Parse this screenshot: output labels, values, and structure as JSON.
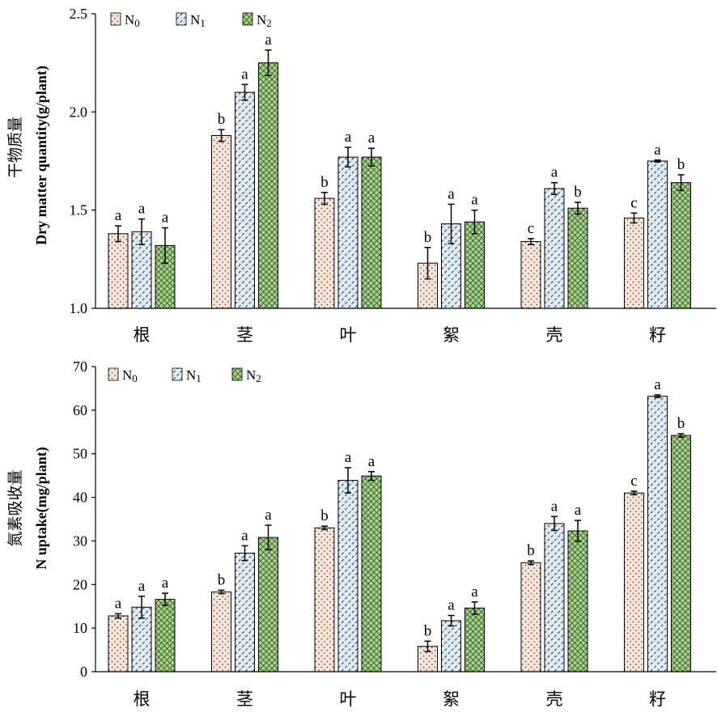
{
  "colors": {
    "N0_fill": "#fbe4d5",
    "N1_fill": "#ddebf7",
    "N2_fill": "#a9d08e",
    "axis": "#000000"
  },
  "chart_data": [
    {
      "type": "bar",
      "ylabel_cn": "干物质量",
      "ylabel_en": "Dry matter quantity(g/plant)",
      "ylim": [
        1.0,
        2.5
      ],
      "yticks": [
        "1.0",
        "1.5",
        "2.0",
        "2.5"
      ],
      "categories": [
        "根",
        "茎",
        "叶",
        "絮",
        "壳",
        "籽"
      ],
      "legend_position": "top-left",
      "series": [
        {
          "name": "N0",
          "values": [
            1.38,
            1.88,
            1.56,
            1.23,
            1.34,
            1.46
          ],
          "errors": [
            0.04,
            0.03,
            0.03,
            0.08,
            0.015,
            0.025
          ],
          "labels": [
            "a",
            "b",
            "b",
            "b",
            "c",
            "c"
          ]
        },
        {
          "name": "N1",
          "values": [
            1.39,
            2.1,
            1.77,
            1.43,
            1.61,
            1.75
          ],
          "errors": [
            0.065,
            0.04,
            0.05,
            0.1,
            0.03,
            0.005
          ],
          "labels": [
            "a",
            "a",
            "a",
            "a",
            "a",
            "a"
          ]
        },
        {
          "name": "N2",
          "values": [
            1.32,
            2.25,
            1.77,
            1.44,
            1.51,
            1.64
          ],
          "errors": [
            0.09,
            0.065,
            0.045,
            0.06,
            0.03,
            0.04
          ],
          "labels": [
            "a",
            "a",
            "a",
            "a",
            "b",
            "b"
          ]
        }
      ]
    },
    {
      "type": "bar",
      "ylabel_cn": "氮素吸收量",
      "ylabel_en": "N uptake(mg/plant)",
      "ylim": [
        0,
        70
      ],
      "yticks": [
        "0",
        "10",
        "20",
        "30",
        "40",
        "50",
        "60",
        "70"
      ],
      "categories": [
        "根",
        "茎",
        "叶",
        "絮",
        "壳",
        "籽"
      ],
      "legend_position": "top-left",
      "series": [
        {
          "name": "N0",
          "values": [
            12.8,
            18.3,
            33.0,
            5.8,
            25.0,
            41.0
          ],
          "errors": [
            0.5,
            0.4,
            0.4,
            1.2,
            0.4,
            0.4
          ],
          "labels": [
            "a",
            "b",
            "b",
            "b",
            "b",
            "c"
          ]
        },
        {
          "name": "N1",
          "values": [
            14.8,
            27.2,
            43.9,
            11.7,
            34.0,
            63.2
          ],
          "errors": [
            2.5,
            1.7,
            2.9,
            1.2,
            1.6,
            0.3
          ],
          "labels": [
            "a",
            "a",
            "a",
            "a",
            "a",
            "a"
          ]
        },
        {
          "name": "N2",
          "values": [
            16.6,
            30.8,
            44.9,
            14.6,
            32.3,
            54.2
          ],
          "errors": [
            1.4,
            2.8,
            1.0,
            1.4,
            2.4,
            0.4
          ],
          "labels": [
            "a",
            "a",
            "a",
            "a",
            "a",
            "b"
          ]
        }
      ]
    }
  ]
}
